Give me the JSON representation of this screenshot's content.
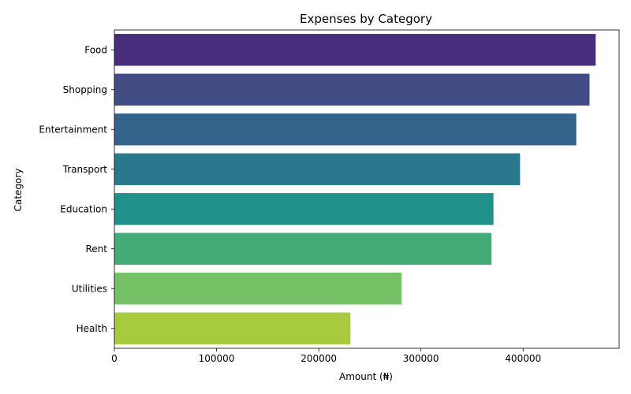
{
  "chart_data": {
    "type": "bar",
    "orientation": "horizontal",
    "title": "Expenses by Category",
    "xlabel": "Amount (₦)",
    "ylabel": "Category",
    "categories": [
      "Food",
      "Shopping",
      "Entertainment",
      "Transport",
      "Education",
      "Rent",
      "Utilities",
      "Health"
    ],
    "values": [
      471000,
      465000,
      452000,
      397000,
      371000,
      369000,
      281000,
      231000
    ],
    "colors": [
      "#472d7b",
      "#424d85",
      "#34648b",
      "#2a788e",
      "#21918c",
      "#44aa77",
      "#75c165",
      "#a8cb3d"
    ],
    "xlim": [
      0,
      494000
    ],
    "xticks": [
      0,
      100000,
      200000,
      300000,
      400000
    ],
    "grid": false,
    "legend": false
  }
}
